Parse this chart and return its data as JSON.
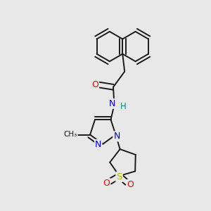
{
  "bg_color": "#e8e8e8",
  "bond_color": "#1a1a1a",
  "atom_colors": {
    "O": "#ff0000",
    "N": "#0000cd",
    "S": "#b8b800",
    "C": "#1a1a1a",
    "H": "#008b8b"
  },
  "font_size": 8.5,
  "bond_width": 1.4,
  "dbo": 0.013
}
